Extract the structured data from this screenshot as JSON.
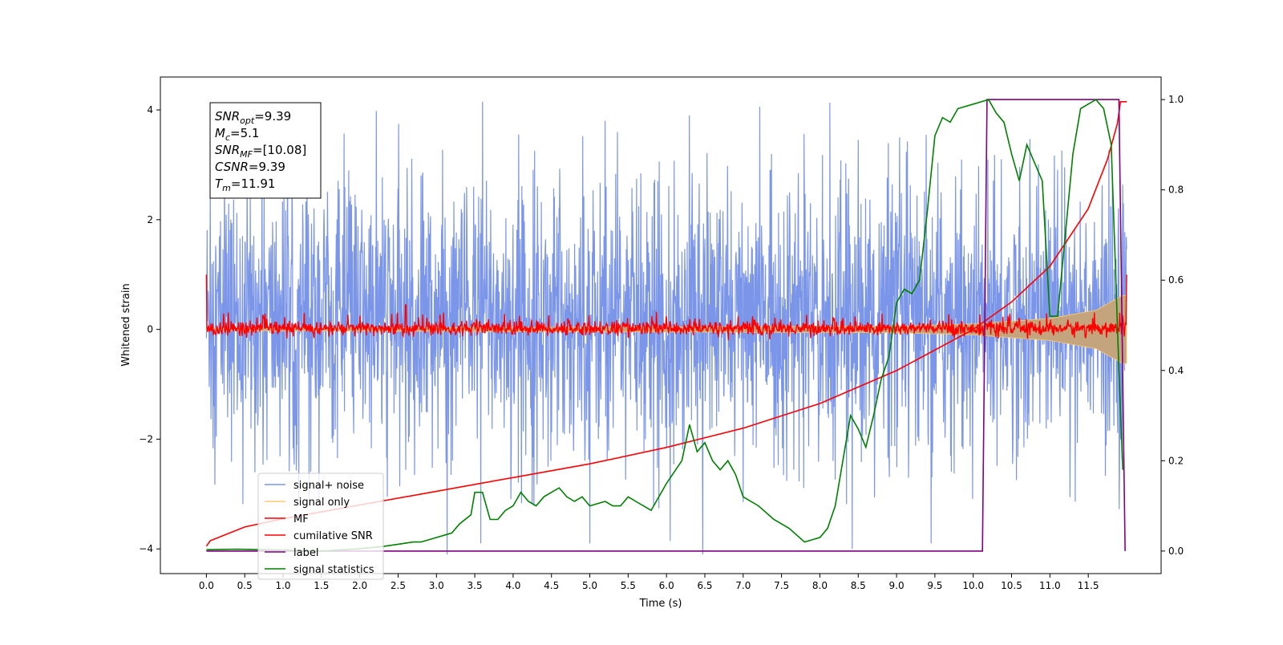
{
  "chart_data": {
    "type": "line",
    "title": "",
    "xlabel": "Time (s)",
    "ylabel": "Whitened strain",
    "y2label": "",
    "xlim": [
      -0.6,
      12.45
    ],
    "ylim": [
      -4.45,
      4.6
    ],
    "y2lim": [
      -0.05,
      1.05
    ],
    "xticks": [
      0.0,
      0.5,
      1.0,
      1.5,
      2.0,
      2.5,
      3.0,
      3.5,
      4.0,
      4.5,
      5.0,
      5.5,
      6.0,
      6.5,
      7.0,
      7.5,
      8.0,
      8.5,
      9.0,
      9.5,
      10.0,
      10.5,
      11.0,
      11.5
    ],
    "xtick_labels": [
      "0.0",
      "0.5",
      "1.0",
      "1.5",
      "2.0",
      "2.5",
      "3.0",
      "3.5",
      "4.0",
      "4.5",
      "5.0",
      "5.5",
      "6.0",
      "6.5",
      "7.0",
      "7.5",
      "8.0",
      "8.5",
      "9.0",
      "9.5",
      "10.0",
      "10.5",
      "11.0",
      "11.5"
    ],
    "yticks": [
      -4,
      -2,
      0,
      2,
      4
    ],
    "ytick_labels": [
      "−4",
      "−2",
      "0",
      "2",
      "4"
    ],
    "y2ticks": [
      0.0,
      0.2,
      0.4,
      0.6,
      0.8,
      1.0
    ],
    "y2tick_labels": [
      "0.0",
      "0.2",
      "0.4",
      "0.6",
      "0.8",
      "1.0"
    ],
    "grid": false,
    "legend_position": "lower-left",
    "annotation": {
      "lines": [
        {
          "sym": "SNR",
          "sub": "opt",
          "val": "=9.39"
        },
        {
          "sym": "M",
          "sub": "c",
          "val": "=5.1"
        },
        {
          "sym": "SNR",
          "sub": "MF",
          "val": "=[10.08]"
        },
        {
          "sym": "CSNR",
          "sub": "",
          "val": "=9.39"
        },
        {
          "sym": "T",
          "sub": "m",
          "val": "=11.91"
        }
      ]
    },
    "series": [
      {
        "name": "signal+ noise",
        "axis": "left",
        "color": "#7b96e8",
        "kind": "noise",
        "x_range": [
          0.0,
          12.0
        ],
        "envelope_typical": [
          -1.9,
          2.3
        ],
        "envelope_peak": [
          -3.3,
          4.15
        ],
        "spikes": [
          {
            "x": 3.6,
            "y": 4.15
          },
          {
            "x": 6.3,
            "y": 3.9
          },
          {
            "x": 5.2,
            "y": 3.8
          },
          {
            "x": 0.05,
            "y": 2.75
          },
          {
            "x": 3.58,
            "y": -3.9
          },
          {
            "x": 8.42,
            "y": -4.0
          },
          {
            "x": 9.45,
            "y": -3.9
          },
          {
            "x": 6.05,
            "y": -3.85
          },
          {
            "x": 5.0,
            "y": -3.9
          }
        ]
      },
      {
        "name": "signal only",
        "axis": "left",
        "color": "#ffc870",
        "kind": "chirp",
        "x_range": [
          0.0,
          12.0
        ],
        "amplitude_points": [
          [
            0.0,
            0.02
          ],
          [
            9.0,
            0.06
          ],
          [
            10.0,
            0.1
          ],
          [
            11.0,
            0.2
          ],
          [
            11.6,
            0.35
          ],
          [
            11.95,
            0.62
          ]
        ]
      },
      {
        "name": "MF",
        "axis": "left",
        "color": "#ff0000",
        "kind": "noise",
        "x_range": [
          0.0,
          12.0
        ],
        "envelope_typical": [
          -0.15,
          0.2
        ],
        "points": [
          [
            0.0,
            1.0
          ],
          [
            0.02,
            0.1
          ],
          [
            2.6,
            0.45
          ],
          [
            11.98,
            0.0
          ],
          [
            12.0,
            1.0
          ]
        ]
      },
      {
        "name": "cumilative SNR",
        "axis": "left",
        "color": "#ff0000",
        "points": [
          [
            0.0,
            -3.95
          ],
          [
            0.05,
            -3.85
          ],
          [
            0.5,
            -3.6
          ],
          [
            1.0,
            -3.45
          ],
          [
            2.0,
            -3.2
          ],
          [
            3.0,
            -2.95
          ],
          [
            4.0,
            -2.7
          ],
          [
            5.0,
            -2.45
          ],
          [
            6.0,
            -2.15
          ],
          [
            7.0,
            -1.8
          ],
          [
            8.0,
            -1.35
          ],
          [
            9.0,
            -0.75
          ],
          [
            10.0,
            0.0
          ],
          [
            10.5,
            0.5
          ],
          [
            11.0,
            1.15
          ],
          [
            11.5,
            2.2
          ],
          [
            11.75,
            3.1
          ],
          [
            11.88,
            3.75
          ],
          [
            11.92,
            4.15
          ],
          [
            12.0,
            4.15
          ]
        ]
      },
      {
        "name": "label",
        "axis": "right",
        "color": "#800080",
        "points": [
          [
            0.0,
            0.0
          ],
          [
            10.12,
            0.0
          ],
          [
            10.18,
            1.0
          ],
          [
            11.9,
            1.0
          ],
          [
            11.98,
            0.0
          ]
        ]
      },
      {
        "name": "signal statistics",
        "axis": "right",
        "color": "#008000",
        "points": [
          [
            0.0,
            0.003
          ],
          [
            0.4,
            0.004
          ],
          [
            1.0,
            0.002
          ],
          [
            1.5,
            0.0
          ],
          [
            2.0,
            0.005
          ],
          [
            2.3,
            0.01
          ],
          [
            2.5,
            0.015
          ],
          [
            2.7,
            0.02
          ],
          [
            2.8,
            0.02
          ],
          [
            3.0,
            0.03
          ],
          [
            3.1,
            0.035
          ],
          [
            3.2,
            0.04
          ],
          [
            3.3,
            0.06
          ],
          [
            3.45,
            0.08
          ],
          [
            3.5,
            0.13
          ],
          [
            3.6,
            0.13
          ],
          [
            3.7,
            0.07
          ],
          [
            3.8,
            0.07
          ],
          [
            3.9,
            0.09
          ],
          [
            4.0,
            0.1
          ],
          [
            4.1,
            0.13
          ],
          [
            4.2,
            0.11
          ],
          [
            4.3,
            0.1
          ],
          [
            4.4,
            0.12
          ],
          [
            4.5,
            0.13
          ],
          [
            4.6,
            0.14
          ],
          [
            4.7,
            0.12
          ],
          [
            4.8,
            0.11
          ],
          [
            4.9,
            0.12
          ],
          [
            5.0,
            0.1
          ],
          [
            5.2,
            0.11
          ],
          [
            5.3,
            0.1
          ],
          [
            5.4,
            0.1
          ],
          [
            5.5,
            0.12
          ],
          [
            5.6,
            0.11
          ],
          [
            5.7,
            0.1
          ],
          [
            5.8,
            0.09
          ],
          [
            6.0,
            0.15
          ],
          [
            6.2,
            0.2
          ],
          [
            6.3,
            0.28
          ],
          [
            6.4,
            0.22
          ],
          [
            6.5,
            0.24
          ],
          [
            6.6,
            0.2
          ],
          [
            6.7,
            0.18
          ],
          [
            6.8,
            0.2
          ],
          [
            6.9,
            0.17
          ],
          [
            7.0,
            0.12
          ],
          [
            7.2,
            0.1
          ],
          [
            7.4,
            0.07
          ],
          [
            7.6,
            0.05
          ],
          [
            7.8,
            0.02
          ],
          [
            8.0,
            0.03
          ],
          [
            8.1,
            0.05
          ],
          [
            8.2,
            0.1
          ],
          [
            8.3,
            0.2
          ],
          [
            8.4,
            0.3
          ],
          [
            8.5,
            0.27
          ],
          [
            8.6,
            0.23
          ],
          [
            8.7,
            0.3
          ],
          [
            8.8,
            0.38
          ],
          [
            8.9,
            0.43
          ],
          [
            9.0,
            0.55
          ],
          [
            9.1,
            0.58
          ],
          [
            9.2,
            0.57
          ],
          [
            9.3,
            0.6
          ],
          [
            9.4,
            0.75
          ],
          [
            9.5,
            0.92
          ],
          [
            9.6,
            0.96
          ],
          [
            9.7,
            0.95
          ],
          [
            9.8,
            0.98
          ],
          [
            10.0,
            0.99
          ],
          [
            10.2,
            1.0
          ],
          [
            10.3,
            0.97
          ],
          [
            10.4,
            0.95
          ],
          [
            10.5,
            0.88
          ],
          [
            10.6,
            0.82
          ],
          [
            10.7,
            0.9
          ],
          [
            10.8,
            0.86
          ],
          [
            10.9,
            0.82
          ],
          [
            11.0,
            0.52
          ],
          [
            11.1,
            0.52
          ],
          [
            11.2,
            0.7
          ],
          [
            11.3,
            0.88
          ],
          [
            11.4,
            0.98
          ],
          [
            11.6,
            1.0
          ],
          [
            11.7,
            0.98
          ],
          [
            11.8,
            0.9
          ],
          [
            11.9,
            0.4
          ],
          [
            11.95,
            0.18
          ]
        ]
      }
    ]
  }
}
